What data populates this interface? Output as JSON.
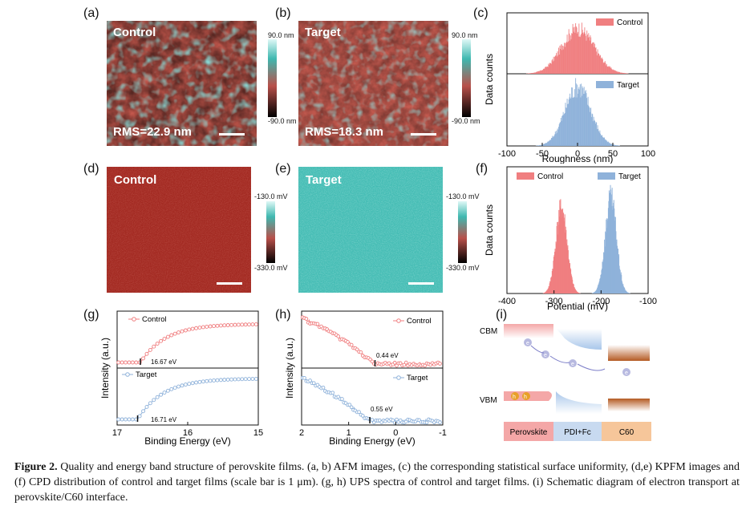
{
  "panels": {
    "a": {
      "letter": "(a)",
      "label": "Control",
      "rms": "RMS=22.9 nm"
    },
    "b": {
      "letter": "(b)",
      "label": "Target",
      "rms": "RMS=18.3 nm"
    },
    "afm_colorbar": {
      "max": "90.0 nm",
      "min": "-90.0 nm"
    },
    "c": {
      "letter": "(c)"
    },
    "d": {
      "letter": "(d)",
      "label": "Control"
    },
    "e": {
      "letter": "(e)",
      "label": "Target"
    },
    "kpfm_colorbar_d": {
      "max": "-130.0 mV",
      "min": "-330.0 mV"
    },
    "kpfm_colorbar_e": {
      "max": "-130.0 mV",
      "min": "-330.0 mV"
    },
    "f": {
      "letter": "(f)"
    },
    "g": {
      "letter": "(g)"
    },
    "h": {
      "letter": "(h)"
    },
    "i": {
      "letter": "(i)"
    }
  },
  "chart_data": [
    {
      "id": "c",
      "type": "histogram",
      "ylabel": "Data counts",
      "xlabel": "Roughness (nm)",
      "xlim": [
        -100,
        100
      ],
      "xticks": [
        "-100",
        "-50",
        "0",
        "50",
        "100"
      ],
      "series": [
        {
          "name": "Control",
          "color": "#f07f80",
          "center": 0,
          "width": 22.9
        },
        {
          "name": "Target",
          "color": "#8fb2da",
          "center": 0,
          "width": 18.3
        }
      ]
    },
    {
      "id": "f",
      "type": "histogram",
      "ylabel": "Data counts",
      "xlabel": "Potential (mV)",
      "xlim": [
        -400,
        -100
      ],
      "xticks": [
        "-400",
        "-300",
        "-200",
        "-100"
      ],
      "series": [
        {
          "name": "Control",
          "color": "#f07f80",
          "center": -285,
          "width": 12
        },
        {
          "name": "Target",
          "color": "#8fb2da",
          "center": -180,
          "width": 12
        }
      ]
    },
    {
      "id": "g",
      "type": "line",
      "ylabel": "Intensity (a.u.)",
      "xlabel": "Binding Energy (eV)",
      "xlim": [
        17,
        15
      ],
      "xticks": [
        "17",
        "16",
        "15"
      ],
      "series": [
        {
          "name": "Control",
          "color": "#f07f80",
          "cutoff": 16.67,
          "annotation": "16.67 eV"
        },
        {
          "name": "Target",
          "color": "#8fb2da",
          "cutoff": 16.71,
          "annotation": "16.71 eV"
        }
      ]
    },
    {
      "id": "h",
      "type": "line",
      "ylabel": "Intensity (a.u.)",
      "xlabel": "Binding Energy (eV)",
      "xlim": [
        2,
        -1
      ],
      "xticks": [
        "2",
        "1",
        "0",
        "-1"
      ],
      "series": [
        {
          "name": "Control",
          "color": "#f07f80",
          "edge": 0.44,
          "annotation": "0.44 eV"
        },
        {
          "name": "Target",
          "color": "#8fb2da",
          "edge": 0.55,
          "annotation": "0.55 eV"
        }
      ]
    }
  ],
  "schematic": {
    "cbm": "CBM",
    "vbm": "VBM",
    "electron": "e",
    "hole": "h",
    "layers": [
      "Perovskite",
      "PDI+Fc",
      "C60"
    ]
  },
  "caption": {
    "lead": "Figure 2.",
    "text": " Quality and energy band structure of perovskite films. (a, b) AFM images, (c) the corresponding statistical surface uniformity, (d,e) KPFM images and (f) CPD distribution of control and target films (scale bar is 1 μm). (g, h) UPS spectra of control and target films. (i) Schematic diagram of electron transport at perovskite/C60 interface."
  },
  "colors": {
    "control": "#f07f80",
    "target": "#8fb2da",
    "afm_red": "#b8504a",
    "afm_teal": "#3fb8b0",
    "kpfm_control": "#a82820",
    "kpfm_target": "#4cc4bc"
  }
}
